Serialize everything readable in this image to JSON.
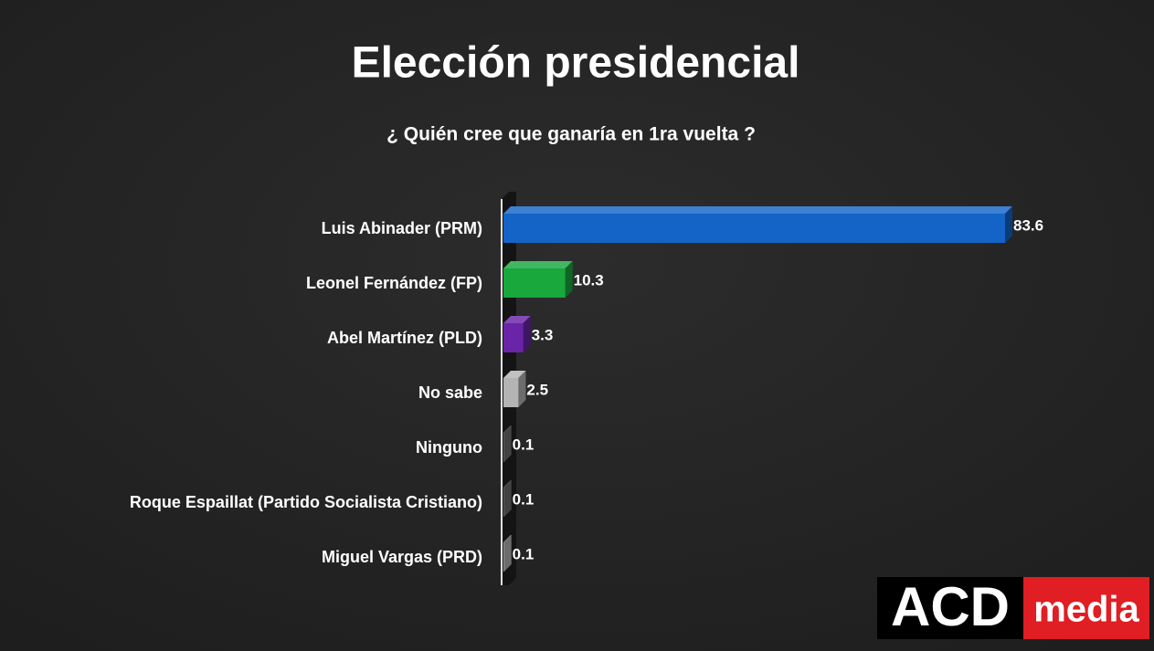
{
  "chart_data": {
    "type": "bar",
    "orientation": "horizontal",
    "title": "Elección presidencial",
    "subtitle": "¿ Quién cree que ganaría en 1ra vuelta ?",
    "categories": [
      "Luis Abinader (PRM)",
      "Leonel Fernández (FP)",
      "Abel Martínez (PLD)",
      "No sabe",
      "Ninguno",
      "Roque Espaillat (Partido Socialista Cristiano)",
      "Miguel Vargas (PRD)"
    ],
    "values": [
      83.6,
      10.3,
      3.3,
      2.5,
      0.1,
      0.1,
      0.1
    ],
    "colors": [
      "#1464c8",
      "#18a83c",
      "#6a24a8",
      "#b4b4b4",
      "#6e6e6e",
      "#6e6e6e",
      "#b4b4b4"
    ]
  },
  "logo": {
    "main": "ACD",
    "accent": "media"
  }
}
